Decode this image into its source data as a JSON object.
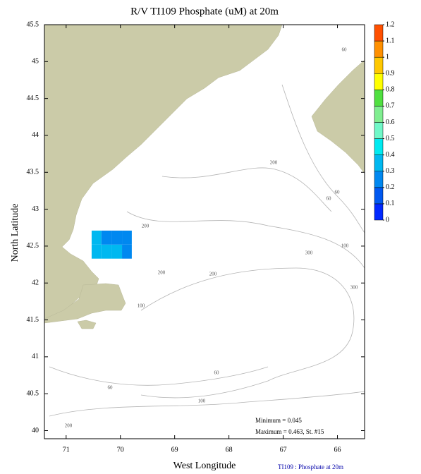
{
  "chart_data": {
    "type": "map",
    "title": "R/V TI109 Phosphate (uM) at 20m",
    "x_label": "West Longitude",
    "y_label": "North Latitude",
    "xlim": [
      71.4,
      65.5
    ],
    "ylim": [
      39.89,
      45.5
    ],
    "xticks": [
      71,
      70,
      69,
      68,
      67,
      66
    ],
    "yticks": [
      40,
      40.5,
      41,
      41.5,
      42,
      42.5,
      43,
      43.5,
      44,
      44.5,
      45,
      45.5
    ],
    "land_color": "#cbcba8",
    "field": {
      "lon_edges": [
        70.53,
        70.35,
        70.16,
        69.97,
        69.79
      ],
      "lat_edges": [
        42.33,
        42.52,
        42.71
      ],
      "values": [
        [
          0.36,
          0.34,
          0.3,
          0.24
        ],
        [
          0.31,
          0.28,
          0.24,
          0.2
        ]
      ]
    },
    "colorbar": {
      "ticks": [
        0,
        0.1,
        0.2,
        0.3,
        0.4,
        0.5,
        0.6,
        0.7,
        0.8,
        0.9,
        1,
        1.1,
        1.2
      ],
      "colors": [
        "#0028ff",
        "#0058f0",
        "#0088f0",
        "#00b8f0",
        "#00eaf0",
        "#70f8c8",
        "#80ee90",
        "#50e040",
        "#ffff00",
        "#ffc800",
        "#ff9000",
        "#ff5000"
      ]
    },
    "contour_labels": [
      60,
      200,
      60,
      60,
      200,
      100,
      300,
      200,
      200,
      300,
      100,
      60,
      60,
      100,
      200
    ],
    "annotations": [
      "Minimum = 0.045",
      "Maximum = 0.463, St. #15"
    ],
    "footer": "TI109 : Phosphate at 20m"
  }
}
